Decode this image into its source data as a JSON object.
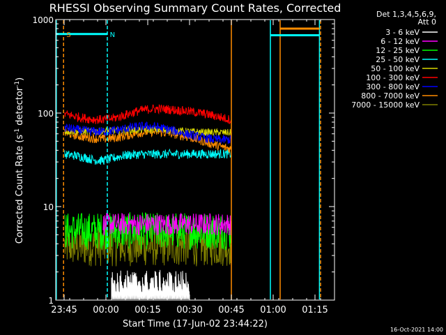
{
  "chart_data": {
    "type": "line",
    "title": "RHESSI Observing Summary Count Rates, Corrected",
    "xlabel": "Start Time (17-Jun-02 23:44:22)",
    "ylabel_main": "Corrected Count Rate (s",
    "ylabel_sup1": "-1",
    "ylabel_mid": " detector",
    "ylabel_sup2": "-1",
    "ylabel_end": ")",
    "yscale": "log",
    "ylim": [
      1,
      1000
    ],
    "xlim_minutes": [
      -2,
      98
    ],
    "x_ticks": [
      {
        "label": "23:45",
        "m": 1
      },
      {
        "label": "00:00",
        "m": 16
      },
      {
        "label": "00:15",
        "m": 31
      },
      {
        "label": "00:30",
        "m": 46
      },
      {
        "label": "00:45",
        "m": 61
      },
      {
        "label": "01:00",
        "m": 76
      },
      {
        "label": "01:15",
        "m": 91
      }
    ],
    "y_ticks": [
      {
        "label": "1",
        "v": 1
      },
      {
        "label": "10",
        "v": 10
      },
      {
        "label": "100",
        "v": 100
      },
      {
        "label": "1000",
        "v": 1000
      }
    ],
    "legend_header": [
      "Det 1,3,4,5,6,9,",
      "Att 0"
    ],
    "legend_placement": "top-right",
    "series": [
      {
        "name": "3 - 6 keV",
        "color": "#ffffff"
      },
      {
        "name": "6 - 12 keV",
        "color": "#ff00ff"
      },
      {
        "name": "12 - 25 keV",
        "color": "#00ff00"
      },
      {
        "name": "25 - 50 keV",
        "color": "#00ffff"
      },
      {
        "name": "50 - 100 keV",
        "color": "#d8d800"
      },
      {
        "name": "100 - 300 keV",
        "color": "#ff0000"
      },
      {
        "name": "300 - 800 keV",
        "color": "#0000ff"
      },
      {
        "name": "800 - 7000 keV",
        "color": "#ff8c00"
      },
      {
        "name": "7000 - 15000 keV",
        "color": "#808000"
      }
    ],
    "annotations": [
      {
        "text": "S",
        "m": 1.8,
        "color": "#ff8c00"
      },
      {
        "text": "N",
        "m": 17.4,
        "color": "#00ffff"
      }
    ],
    "event_lines": [
      {
        "m": -1.8,
        "color": "#00ffff",
        "style": "solid"
      },
      {
        "m": 0.8,
        "color": "#ff8c00",
        "style": "dashed"
      },
      {
        "m": 16.5,
        "color": "#00ffff",
        "style": "dashed"
      },
      {
        "m": 61.0,
        "color": "#ff8c00",
        "style": "solid"
      },
      {
        "m": 75.0,
        "color": "#00ffff",
        "style": "solid"
      },
      {
        "m": 78.5,
        "color": "#ff8c00",
        "style": "solid"
      },
      {
        "m": 92.6,
        "color": "#00ffff",
        "style": "solid"
      },
      {
        "m": 93.0,
        "color": "#ff8c00",
        "style": "dashed"
      }
    ],
    "flag_bars": [
      {
        "m0": -1.8,
        "m1": 16.5,
        "v": 700,
        "color": "#00ffff"
      },
      {
        "m0": 75.0,
        "m1": 92.6,
        "v": 680,
        "color": "#00ffff"
      },
      {
        "m0": 78.5,
        "m1": 92.6,
        "v": 800,
        "color": "#ff8c00"
      }
    ],
    "data_window_minutes": [
      1,
      61
    ]
  },
  "footer_timestamp": "16-Oct-2021 14:00"
}
